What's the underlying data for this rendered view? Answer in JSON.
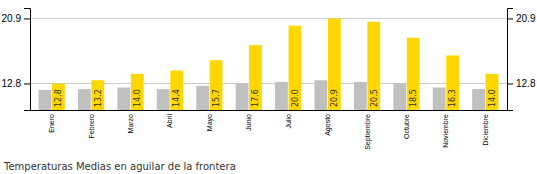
{
  "chart_data": {
    "type": "bar",
    "title": "Temperaturas Medias en aguilar de la frontera",
    "categories": [
      "Enero",
      "Febrero",
      "Marzo",
      "Abril",
      "Mayo",
      "Junio",
      "Julio",
      "Agosto",
      "Septiembre",
      "Octubre",
      "Noviembre",
      "Diciembre"
    ],
    "series": [
      {
        "color": "#C0C0C0",
        "values": [
          12.0,
          12.1,
          12.3,
          12.1,
          12.5,
          12.8,
          13.0,
          13.2,
          13.0,
          12.8,
          12.3,
          12.1
        ]
      },
      {
        "color": "#FFD700",
        "values": [
          12.8,
          13.2,
          14.0,
          14.4,
          15.7,
          17.6,
          20.0,
          20.9,
          20.5,
          18.5,
          16.3,
          14.0
        ],
        "value_labels": [
          "12.8",
          "13.2",
          "14.0",
          "14.4",
          "15.7",
          "17.6",
          "20.0",
          "20.9",
          "20.5",
          "18.5",
          "16.3",
          "14.0"
        ],
        "data_labels": true
      }
    ],
    "ylim": [
      9.5,
      22.2
    ],
    "yticks": [
      12.8,
      20.9
    ],
    "grid": true
  }
}
